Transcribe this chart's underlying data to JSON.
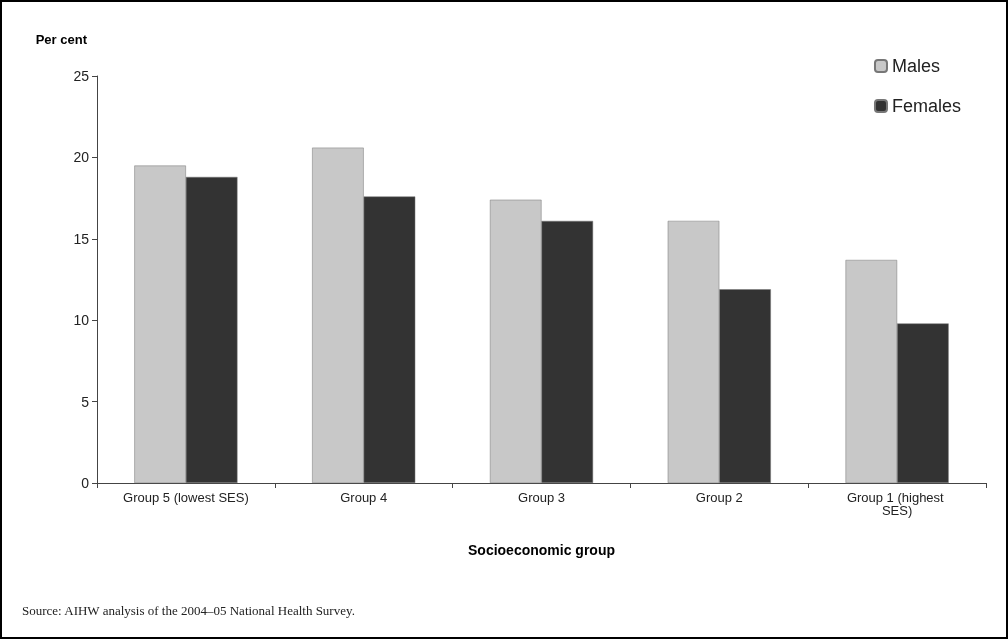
{
  "chart_data": {
    "type": "bar",
    "ylabel": "Per cent",
    "xlabel": "Socioeconomic group",
    "categories": [
      "Group 5 (lowest SES)",
      "Group 4",
      "Group 3",
      "Group 2",
      "Group 1 (highest SES)"
    ],
    "series": [
      {
        "name": "Males",
        "color": "#c8c8c8",
        "values": [
          19.5,
          20.6,
          17.4,
          16.1,
          13.7
        ]
      },
      {
        "name": "Females",
        "color": "#333333",
        "values": [
          18.8,
          17.6,
          16.1,
          11.9,
          9.8
        ]
      }
    ],
    "ylim": [
      0,
      25
    ],
    "yticks": [
      0,
      5,
      10,
      15,
      20,
      25
    ],
    "grid": false,
    "legend": "top right",
    "annotations": [
      "Source: AIHW analysis of the 2004–05 National Health Survey."
    ]
  }
}
